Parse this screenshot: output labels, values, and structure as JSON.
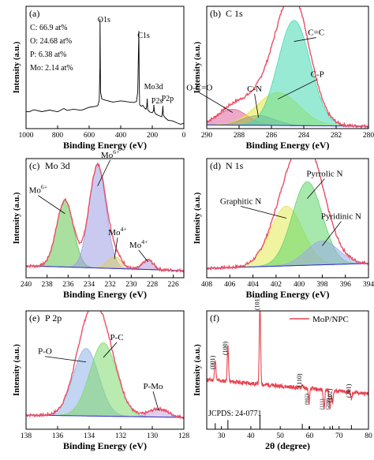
{
  "chart_data": [
    {
      "id": "a",
      "type": "line",
      "panel_label": "(a)",
      "xlabel": "Binding Energy (eV)",
      "ylabel": "Intensity (a.u.)",
      "xlim": [
        1000,
        0
      ],
      "ylim": [
        0,
        1
      ],
      "xticks": [
        1000,
        800,
        600,
        400,
        200,
        0
      ],
      "composition": [
        "C: 66.9 at%",
        "O: 24.68 at%",
        "P: 6.38 at%",
        "Mo: 2.14 at%"
      ],
      "peaks": [
        {
          "label": "O1s",
          "x": 531
        },
        {
          "label": "C1s",
          "x": 285
        },
        {
          "label": "Mo3d",
          "x": 232
        },
        {
          "label": "P2s",
          "x": 190
        },
        {
          "label": "P2p",
          "x": 133
        }
      ],
      "series": [
        {
          "x": [
            1000,
            980,
            950,
            900,
            850,
            800,
            760,
            740,
            700,
            650,
            600,
            560,
            545,
            536,
            532,
            531,
            528,
            520,
            500,
            450,
            400,
            350,
            320,
            300,
            292,
            288,
            285,
            283,
            280,
            270,
            260,
            250,
            240,
            235,
            232,
            229,
            225,
            215,
            200,
            192,
            190,
            187,
            180,
            160,
            140,
            135,
            133,
            130,
            120,
            100,
            70,
            40,
            20,
            0
          ],
          "y": [
            0.14,
            0.14,
            0.15,
            0.14,
            0.15,
            0.14,
            0.16,
            0.15,
            0.16,
            0.15,
            0.17,
            0.18,
            0.19,
            0.23,
            0.5,
            0.9,
            0.3,
            0.24,
            0.23,
            0.22,
            0.23,
            0.22,
            0.21,
            0.22,
            0.3,
            0.6,
            0.8,
            0.4,
            0.2,
            0.18,
            0.19,
            0.17,
            0.16,
            0.18,
            0.25,
            0.16,
            0.15,
            0.14,
            0.13,
            0.15,
            0.19,
            0.14,
            0.12,
            0.11,
            0.1,
            0.14,
            0.19,
            0.11,
            0.09,
            0.07,
            0.06,
            0.05,
            0.04,
            0.04
          ]
        }
      ]
    },
    {
      "id": "b",
      "type": "area",
      "panel_label": "(b)",
      "title": "C 1s",
      "xlabel": "Binding Energy (eV)",
      "ylabel": "Intensity (a.u.)",
      "xlim": [
        290,
        280
      ],
      "ylim": [
        0,
        1
      ],
      "xticks": [
        290,
        288,
        286,
        284,
        282,
        280
      ],
      "components": [
        {
          "name": "O-C=O",
          "center": 288.4,
          "height": 0.13,
          "width": 0.9,
          "color": "#e0609a"
        },
        {
          "name": "C-N",
          "center": 286.8,
          "height": 0.08,
          "width": 1.0,
          "color": "#3a56d6"
        },
        {
          "name": "C-P",
          "center": 285.6,
          "height": 0.27,
          "width": 1.3,
          "color": "#e2e83a"
        },
        {
          "name": "C=C",
          "center": 284.6,
          "height": 0.86,
          "width": 1.0,
          "color": "#46d9b0"
        }
      ],
      "baseline": [
        0.03,
        0.02
      ],
      "envelope_color": "#e84f67"
    },
    {
      "id": "c",
      "type": "area",
      "panel_label": "(c)",
      "title": "Mo 3d",
      "xlabel": "Binding Energy (eV)",
      "ylabel": "Intensity (a.u.)",
      "xlim": [
        240,
        225
      ],
      "ylim": [
        0,
        1
      ],
      "xticks": [
        240,
        238,
        236,
        234,
        232,
        230,
        228,
        226
      ],
      "components": [
        {
          "name": "Mo6+",
          "center": 236.3,
          "height": 0.56,
          "width": 0.8,
          "color": "#62c451"
        },
        {
          "name": "Mo6+",
          "center": 233.2,
          "height": 0.86,
          "width": 0.8,
          "color": "#9f9fe6"
        },
        {
          "name": "Mo4+",
          "center": 231.6,
          "height": 0.1,
          "width": 0.7,
          "color": "#d8cf6a"
        },
        {
          "name": "Mo4+",
          "center": 228.4,
          "height": 0.08,
          "width": 0.5,
          "color": "#b79ad8"
        }
      ],
      "baseline": [
        0.1,
        0.06
      ],
      "envelope_color": "#e84f67"
    },
    {
      "id": "d",
      "type": "area",
      "panel_label": "(d)",
      "title": "N 1s",
      "xlabel": "Binding Energy (eV)",
      "ylabel": "Intensity (a.u.)",
      "xlim": [
        408,
        394
      ],
      "ylim": [
        0,
        1
      ],
      "xticks": [
        408,
        406,
        404,
        402,
        400,
        398,
        396,
        394
      ],
      "components": [
        {
          "name": "Graphitic N",
          "center": 401.1,
          "height": 0.5,
          "width": 1.4,
          "color": "#e4ea52"
        },
        {
          "name": "Pyrrolic N",
          "center": 399.3,
          "height": 0.7,
          "width": 1.3,
          "color": "#5fd66a"
        },
        {
          "name": "Pyridinic N",
          "center": 398.0,
          "height": 0.2,
          "width": 1.4,
          "color": "#9aa9e8"
        }
      ],
      "baseline": [
        0.08,
        0.12
      ],
      "envelope_color": "#e84f67"
    },
    {
      "id": "e",
      "type": "area",
      "panel_label": "(e)",
      "title": "P 2p",
      "xlabel": "Binding Energy (eV)",
      "ylabel": "Intensity (a.u.)",
      "xlim": [
        138,
        128
      ],
      "ylim": [
        0,
        1
      ],
      "xticks": [
        138,
        136,
        134,
        132,
        130,
        128
      ],
      "components": [
        {
          "name": "P-O",
          "center": 134.2,
          "height": 0.57,
          "width": 0.8,
          "color": "#8fb3e8"
        },
        {
          "name": "P-C",
          "center": 133.1,
          "height": 0.62,
          "width": 0.85,
          "color": "#7fd96e"
        },
        {
          "name": "P-Mo",
          "center": 129.6,
          "height": 0.07,
          "width": 0.6,
          "color": "#c7a7d9"
        }
      ],
      "baseline": [
        0.12,
        0.1
      ],
      "envelope_color": "#e84f67"
    },
    {
      "id": "f",
      "type": "line",
      "panel_label": "(f)",
      "legend": "MoP/NPC",
      "reference_label": "JCPDS: 24-0771",
      "xlabel": "2θ (degree)",
      "ylabel": "Intensity (a.u.)",
      "xlim": [
        25,
        80
      ],
      "ylim": [
        0,
        1
      ],
      "xticks": [
        30,
        40,
        50,
        60,
        70,
        80
      ],
      "peaks": [
        {
          "label": "(001)",
          "x": 27.9,
          "height": 0.48
        },
        {
          "label": "(100)",
          "x": 32.2,
          "height": 0.6
        },
        {
          "label": "(101)",
          "x": 43.1,
          "height": 0.98
        },
        {
          "label": "(110)",
          "x": 57.5,
          "height": 0.33
        },
        {
          "label": "(002)",
          "x": 59.8,
          "height": 0.18
        },
        {
          "label": "(111)",
          "x": 64.9,
          "height": 0.14
        },
        {
          "label": "(200)",
          "x": 66.9,
          "height": 0.14
        },
        {
          "label": "(102)",
          "x": 67.8,
          "height": 0.2
        },
        {
          "label": "(201)",
          "x": 74.2,
          "height": 0.24
        }
      ],
      "reference_sticks": [
        {
          "x": 27.9,
          "h": 0.35
        },
        {
          "x": 32.2,
          "h": 0.6
        },
        {
          "x": 43.1,
          "h": 1.0
        },
        {
          "x": 57.5,
          "h": 0.3
        },
        {
          "x": 59.8,
          "h": 0.1
        },
        {
          "x": 64.9,
          "h": 0.1
        },
        {
          "x": 66.9,
          "h": 0.1
        },
        {
          "x": 67.8,
          "h": 0.15
        },
        {
          "x": 74.2,
          "h": 0.2
        }
      ],
      "line_color": "#e8434f"
    }
  ]
}
